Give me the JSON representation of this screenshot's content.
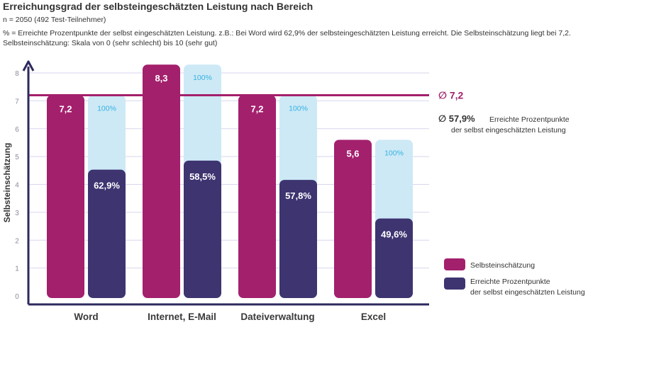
{
  "header": {
    "title": "Erreichungsgrad der selbsteingeschätzten Leistung nach Bereich",
    "sample": "n = 2050 (492 Test-Teilnehmer)",
    "note1": "% = Erreichte Prozentpunkte der selbst eingeschätzten Leistung. z.B.: Bei Word wird 62,9% der selbsteingeschätzten Leistung erreicht. Die Selbsteinschätzung liegt bei 7,2.",
    "note2": "Selbsteinschätzung: Skala von 0 (sehr schlecht) bis 10 (sehr gut)"
  },
  "colors": {
    "self": "#a3206d",
    "achieved": "#3d3470",
    "full": "#cde9f6",
    "axis": "#2d2a5e",
    "grid": "#d8d6ee",
    "avgline": "#a3206d"
  },
  "chart_data": {
    "type": "bar",
    "ylabel": "Selbsteinschätzung",
    "ylim": [
      0,
      8
    ],
    "yticks": [
      "0",
      "1",
      "2",
      "3",
      "4",
      "5",
      "6",
      "7",
      "8"
    ],
    "categories": [
      "Word",
      "Internet, E-Mail",
      "Dateiverwaltung",
      "Excel"
    ],
    "series": [
      {
        "name": "Selbsteinschätzung",
        "values": [
          7.2,
          8.3,
          7.2,
          5.6
        ],
        "labels": [
          "7,2",
          "8,3",
          "7,2",
          "5,6"
        ]
      },
      {
        "name": "Erreichte Prozentpunkte der selbst eingeschätzten Leistung",
        "values": [
          62.9,
          58.5,
          57.8,
          49.6
        ],
        "labels": [
          "62,9%",
          "58,5%",
          "57,8%",
          "49,6%"
        ],
        "full_label": "100%"
      }
    ],
    "average": {
      "self": 7.2,
      "self_label": "∅ 7,2",
      "achieved_label": "∅ 57,9%",
      "achieved_text_1": "Erreichte Prozentpunkte",
      "achieved_text_2": "der selbst eingeschätzten Leistung"
    },
    "legend": {
      "position": "right",
      "items": [
        {
          "label": "Selbsteinschätzung"
        },
        {
          "label_1": "Erreichte Prozentpunkte",
          "label_2": "der selbst eingeschätzten Leistung"
        }
      ]
    }
  }
}
